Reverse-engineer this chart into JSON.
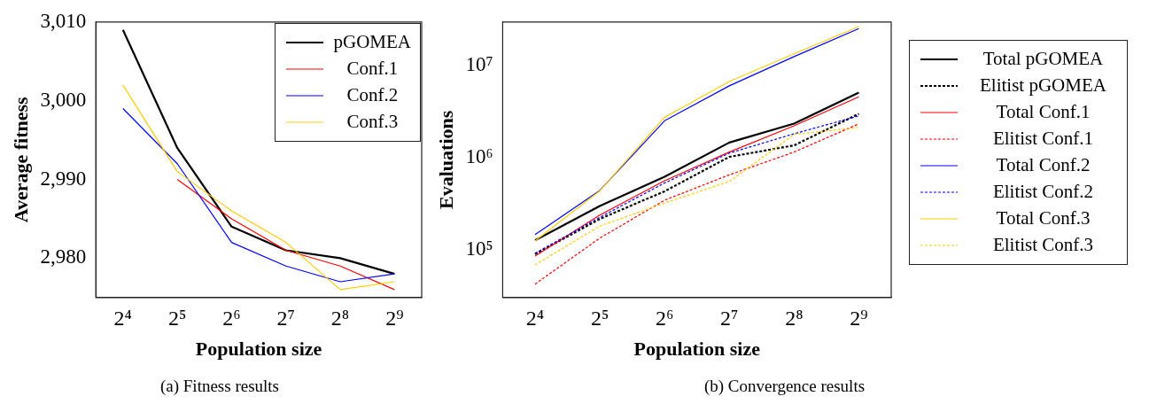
{
  "chart_data": [
    {
      "type": "line",
      "xlabel": "Population size",
      "ylabel": "Average fitness",
      "categories": [
        "2⁴",
        "2⁵",
        "2⁶",
        "2⁷",
        "2⁸",
        "2⁹"
      ],
      "ylim": [
        2975,
        3010
      ],
      "yticks": [
        {
          "value": 2980,
          "label": "2,980"
        },
        {
          "value": 2990,
          "label": "2,990"
        },
        {
          "value": 3000,
          "label": "3,000"
        },
        {
          "value": 3010,
          "label": "3,010"
        }
      ],
      "legend": "top right",
      "grid": false,
      "annotations": [
        "(a) Fitness results"
      ],
      "series": [
        {
          "name": "pGOMEA",
          "color": "#000000",
          "line_style": "solid",
          "values": [
            3009,
            2994,
            2984,
            2981,
            2980,
            2978
          ]
        },
        {
          "name": "Conf.1",
          "color": "#ff0000",
          "line_style": "solid",
          "values": [
            null,
            2990,
            2985,
            2981,
            2979,
            2976
          ]
        },
        {
          "name": "Conf.2",
          "color": "#0000ff",
          "line_style": "solid",
          "values": [
            2999,
            2992,
            2982,
            2979,
            2977,
            2978
          ]
        },
        {
          "name": "Conf.3",
          "color": "#ffcc00",
          "line_style": "solid",
          "values": [
            3002,
            2991,
            2986,
            2982,
            2976,
            2977
          ]
        }
      ]
    },
    {
      "type": "line",
      "xlabel": "Population size",
      "ylabel": "Evaluations",
      "categories": [
        "2⁴",
        "2⁵",
        "2⁶",
        "2⁷",
        "2⁸",
        "2⁹"
      ],
      "log": "y",
      "ylim": [
        30000,
        30000000
      ],
      "yticks": [
        {
          "value": 100000,
          "label": "10⁵"
        },
        {
          "value": 1000000,
          "label": "10⁶"
        },
        {
          "value": 10000000,
          "label": "10⁷"
        }
      ],
      "legend": "right",
      "grid": false,
      "annotations": [
        "(b) Convergence results"
      ],
      "series": [
        {
          "name": "Total pGOMEA",
          "color": "#000000",
          "line_style": "solid",
          "values": [
            126000,
            297000,
            620000,
            1460000,
            2350000,
            5100000
          ]
        },
        {
          "name": "Elitist pGOMEA",
          "color": "#000000",
          "line_style": "dashed",
          "values": [
            89000,
            215000,
            430000,
            1020000,
            1360000,
            3000000
          ]
        },
        {
          "name": "Total Conf.1",
          "color": "#ff0000",
          "line_style": "solid",
          "values": [
            85000,
            237000,
            560000,
            1150000,
            2220000,
            4600000
          ]
        },
        {
          "name": "Elitist Conf.1",
          "color": "#ff0000",
          "line_style": "dashed",
          "values": [
            42000,
            133000,
            344000,
            650000,
            1150000,
            2330000
          ]
        },
        {
          "name": "Total Conf.2",
          "color": "#0000ff",
          "line_style": "solid",
          "values": [
            145000,
            440000,
            2520000,
            6050000,
            12600000,
            25400000
          ]
        },
        {
          "name": "Elitist Conf.2",
          "color": "#0000ff",
          "line_style": "dashed",
          "values": [
            91000,
            224000,
            530000,
            1120000,
            1820000,
            2850000
          ]
        },
        {
          "name": "Total Conf.3",
          "color": "#ffcc00",
          "line_style": "solid",
          "values": [
            124000,
            435000,
            2750000,
            6750000,
            13500000,
            26700000
          ]
        },
        {
          "name": "Elitist Conf.3",
          "color": "#ffcc00",
          "line_style": "dashed",
          "values": [
            68000,
            180000,
            320000,
            550000,
            1790000,
            2140000
          ]
        }
      ]
    }
  ]
}
